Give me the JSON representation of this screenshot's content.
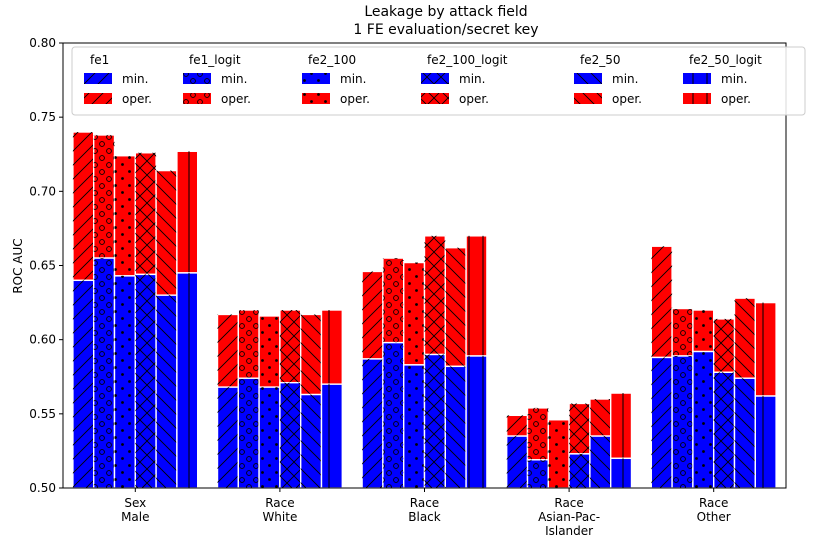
{
  "chart_data": {
    "type": "bar",
    "title": "Leakage by attack field",
    "subtitle": "1 FE evaluation/secret key",
    "xlabel": "",
    "ylabel": "ROC AUC",
    "ylim": [
      0.5,
      0.8
    ],
    "yticks": [
      "0.50",
      "0.55",
      "0.60",
      "0.65",
      "0.70",
      "0.75",
      "0.80"
    ],
    "categories": [
      [
        "Sex",
        "Male"
      ],
      [
        "Race",
        "White"
      ],
      [
        "Race",
        "Black"
      ],
      [
        "Race",
        "Asian-Pac-",
        "Islander"
      ],
      [
        "Race",
        "Other"
      ]
    ],
    "stack_labels": [
      "min.",
      "oper."
    ],
    "stack_colors": {
      "min.": "#0000ff",
      "oper.": "#ff0000"
    },
    "legend_position": "top",
    "series": [
      {
        "name": "fe1",
        "hatch": "diagonal",
        "min": [
          0.64,
          0.568,
          0.587,
          0.535,
          0.588
        ],
        "oper": [
          0.74,
          0.617,
          0.646,
          0.549,
          0.663
        ]
      },
      {
        "name": "fe1_logit",
        "hatch": "circles",
        "min": [
          0.655,
          0.574,
          0.598,
          0.519,
          0.589
        ],
        "oper": [
          0.738,
          0.62,
          0.655,
          0.554,
          0.621
        ]
      },
      {
        "name": "fe2_100",
        "hatch": "dots",
        "min": [
          0.643,
          0.568,
          0.583,
          0.5,
          0.592
        ],
        "oper": [
          0.724,
          0.616,
          0.652,
          0.546,
          0.62
        ]
      },
      {
        "name": "fe2_100_logit",
        "hatch": "cross",
        "min": [
          0.644,
          0.571,
          0.59,
          0.523,
          0.578
        ],
        "oper": [
          0.726,
          0.62,
          0.67,
          0.557,
          0.614
        ]
      },
      {
        "name": "fe2_50",
        "hatch": "backslash",
        "min": [
          0.63,
          0.563,
          0.582,
          0.535,
          0.574
        ],
        "oper": [
          0.714,
          0.617,
          0.662,
          0.56,
          0.628
        ]
      },
      {
        "name": "fe2_50_logit",
        "hatch": "vertical",
        "min": [
          0.645,
          0.57,
          0.589,
          0.52,
          0.562
        ],
        "oper": [
          0.727,
          0.62,
          0.67,
          0.564,
          0.625
        ]
      }
    ]
  }
}
